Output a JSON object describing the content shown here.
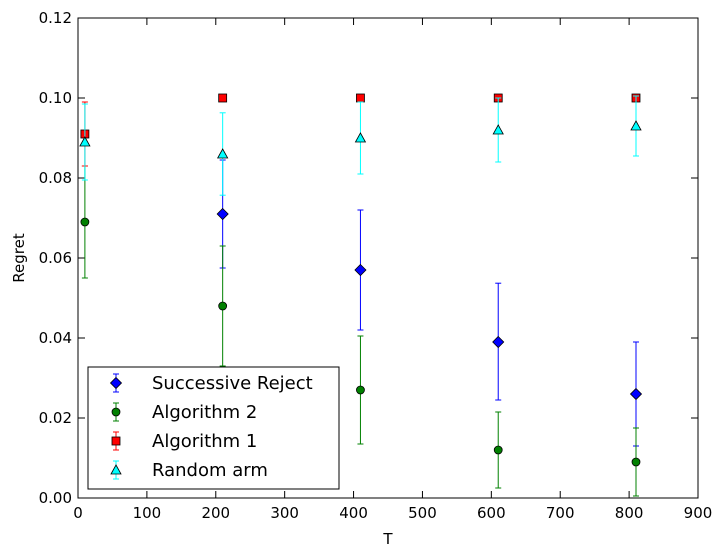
{
  "chart_data": {
    "type": "scatter",
    "xlabel": "T",
    "ylabel": "Regret",
    "xlim": [
      0,
      900
    ],
    "ylim": [
      0,
      0.12
    ],
    "xticks": [
      0,
      100,
      200,
      300,
      400,
      500,
      600,
      700,
      800,
      900
    ],
    "yticks": [
      0.0,
      0.02,
      0.04,
      0.06,
      0.08,
      0.1,
      0.12
    ],
    "xtick_labels": [
      "0",
      "100",
      "200",
      "300",
      "400",
      "500",
      "600",
      "700",
      "800",
      "900"
    ],
    "ytick_labels": [
      "0.00",
      "0.02",
      "0.04",
      "0.06",
      "0.08",
      "0.10",
      "0.12"
    ],
    "grid": false,
    "legend_position": "lower-left",
    "series": [
      {
        "name": "Successive Reject",
        "color": "#0000ff",
        "marker": "diamond",
        "points": [
          {
            "x": 210,
            "y": 0.071,
            "low": 0.0575,
            "high": 0.0845
          },
          {
            "x": 410,
            "y": 0.057,
            "low": 0.042,
            "high": 0.072
          },
          {
            "x": 610,
            "y": 0.039,
            "low": 0.0245,
            "high": 0.0537
          },
          {
            "x": 810,
            "y": 0.026,
            "low": 0.013,
            "high": 0.039
          }
        ]
      },
      {
        "name": "Algorithm 2",
        "color": "#008000",
        "marker": "circle",
        "points": [
          {
            "x": 10,
            "y": 0.069,
            "low": 0.055,
            "high": 0.083
          },
          {
            "x": 210,
            "y": 0.048,
            "low": 0.033,
            "high": 0.063
          },
          {
            "x": 410,
            "y": 0.027,
            "low": 0.0135,
            "high": 0.0405
          },
          {
            "x": 610,
            "y": 0.012,
            "low": 0.0025,
            "high": 0.0215
          },
          {
            "x": 810,
            "y": 0.009,
            "low": 0.0005,
            "high": 0.0175
          }
        ]
      },
      {
        "name": "Algorithm 1",
        "color": "#ff0000",
        "marker": "square",
        "points": [
          {
            "x": 10,
            "y": 0.091,
            "low": 0.083,
            "high": 0.099
          },
          {
            "x": 210,
            "y": 0.1,
            "low": 0.1,
            "high": 0.1
          },
          {
            "x": 410,
            "y": 0.1,
            "low": 0.1,
            "high": 0.1
          },
          {
            "x": 610,
            "y": 0.1,
            "low": 0.1,
            "high": 0.1
          },
          {
            "x": 810,
            "y": 0.1,
            "low": 0.1,
            "high": 0.1
          }
        ]
      },
      {
        "name": "Random arm",
        "color": "#00ffff",
        "marker": "triangle",
        "points": [
          {
            "x": 10,
            "y": 0.089,
            "low": 0.0795,
            "high": 0.0985
          },
          {
            "x": 210,
            "y": 0.086,
            "low": 0.0757,
            "high": 0.0963
          },
          {
            "x": 410,
            "y": 0.09,
            "low": 0.081,
            "high": 0.099
          },
          {
            "x": 610,
            "y": 0.092,
            "low": 0.084,
            "high": 0.1
          },
          {
            "x": 810,
            "y": 0.093,
            "low": 0.0855,
            "high": 0.1005
          }
        ]
      }
    ]
  }
}
